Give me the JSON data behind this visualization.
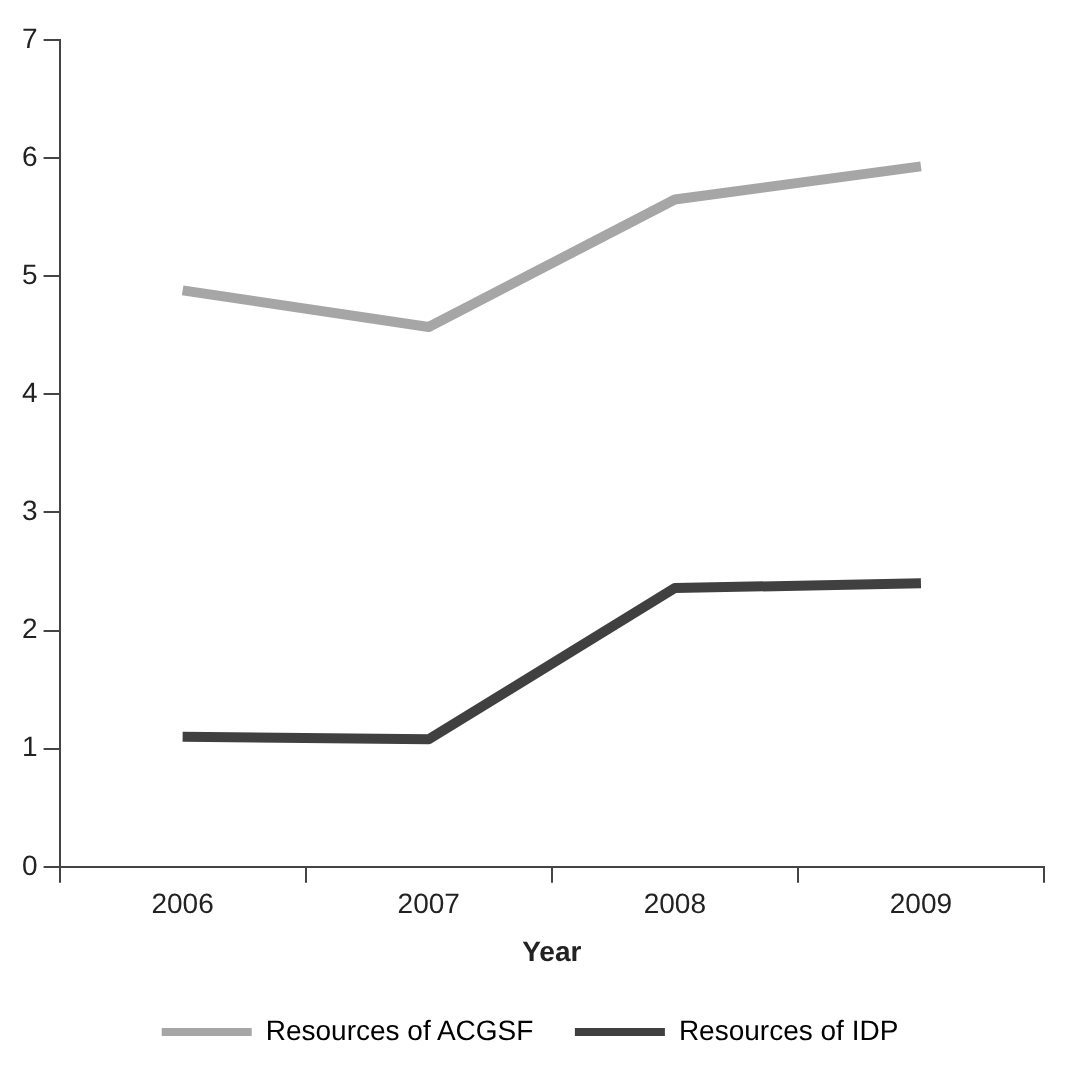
{
  "chart_data": {
    "type": "line",
    "xlabel": "Year",
    "categories": [
      "2006",
      "2007",
      "2008",
      "2009"
    ],
    "series": [
      {
        "name": "Resources of ACGSF",
        "color": "#a6a6a6",
        "values": [
          4.88,
          4.57,
          5.65,
          5.93
        ]
      },
      {
        "name": "Resources of IDP",
        "color": "#404040",
        "values": [
          1.1,
          1.08,
          2.36,
          2.4
        ]
      }
    ],
    "ylim": [
      0,
      7
    ],
    "yticks": [
      0,
      1,
      2,
      3,
      4,
      5,
      6,
      7
    ],
    "grid": false,
    "legend": "bottom",
    "marker": "none",
    "line_style": "solid"
  }
}
